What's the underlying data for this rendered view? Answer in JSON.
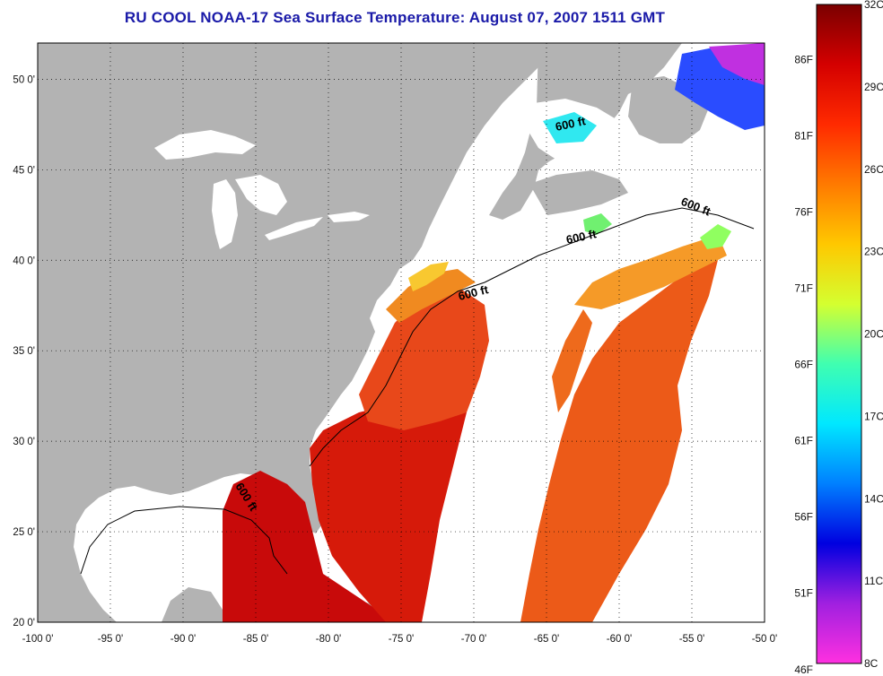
{
  "title": "RU COOL  NOAA-17  Sea Surface Temperature:  August 07, 2007 1511 GMT",
  "colors": {
    "land": "#b3b3b3",
    "cloud_white": "#ffffff",
    "frame": "#000000",
    "title_blue": "#1a1aa8"
  },
  "map": {
    "lon_range": [
      -100,
      -50
    ],
    "lat_range": [
      20,
      52
    ],
    "x_tick_labels": [
      "-100 0'",
      "-95 0'",
      "-90 0'",
      "-85 0'",
      "-80 0'",
      "-75 0'",
      "-70 0'",
      "-65 0'",
      "-60 0'",
      "-55 0'",
      "-50 0'"
    ],
    "y_tick_labels": [
      "20 0'",
      "25 0'",
      "30 0'",
      "35 0'",
      "40 0'",
      "45 0'",
      "50 0'"
    ],
    "contour_label": "600 ft"
  },
  "colorbar": {
    "celsius_labels": [
      "32C",
      "29C",
      "26C",
      "23C",
      "20C",
      "17C",
      "14C",
      "11C",
      "8C"
    ],
    "fahrenheit_labels": [
      "86F",
      "81F",
      "76F",
      "71F",
      "66F",
      "61F",
      "56F",
      "51F",
      "46F"
    ],
    "celsius_range": [
      8,
      32
    ],
    "fahrenheit_range": [
      46,
      90
    ],
    "gradient_colors": [
      "#7a0000",
      "#d40000",
      "#ff2a00",
      "#ff7a00",
      "#ffc800",
      "#d4ff30",
      "#40ffb0",
      "#00e8ff",
      "#0080ff",
      "#0000e0",
      "#a020e0",
      "#ff30e0"
    ]
  }
}
